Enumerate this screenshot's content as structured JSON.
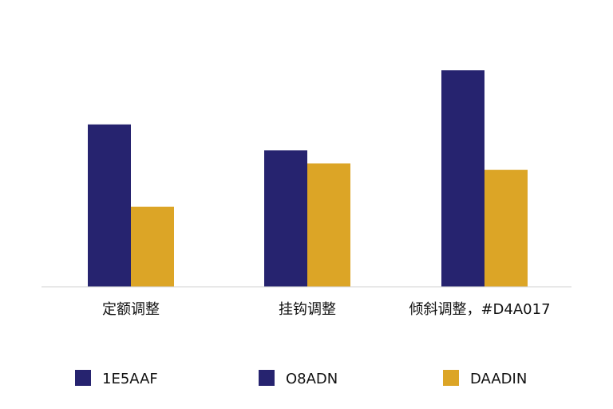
{
  "colors": {
    "series_a": "#26236F",
    "series_b": "#DCA526",
    "baseline": "#d0d0d0",
    "text": "#111111"
  },
  "legend": {
    "items": [
      {
        "color_ref": "series_a",
        "label": "1E5AAF"
      },
      {
        "color_ref": "series_a",
        "label": "O8ADN"
      },
      {
        "color_ref": "series_b",
        "label": "DAADIN"
      }
    ]
  },
  "chart_data": {
    "type": "bar",
    "title": "",
    "xlabel": "",
    "ylabel": "",
    "grid": false,
    "legend_position": "bottom",
    "ylim": [
      0,
      100
    ],
    "categories": [
      "定额调整",
      "挂钩调整",
      "倾斜调整，#D4A017"
    ],
    "series": [
      {
        "values": [
          75,
          63,
          100
        ]
      },
      {
        "values": [
          37,
          57,
          54
        ]
      }
    ]
  }
}
